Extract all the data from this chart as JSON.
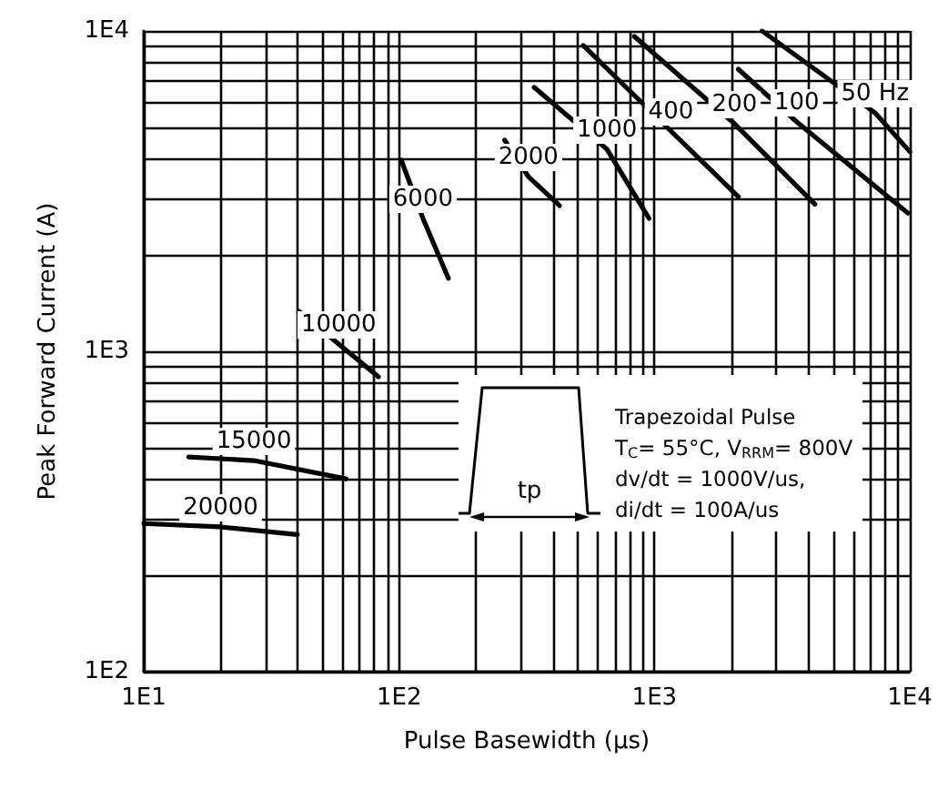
{
  "chart_data": {
    "type": "line",
    "xlabel": "Pulse Basewidth (µs)",
    "ylabel": "Peak Forward Current (A)",
    "log": "xy",
    "grid": true,
    "xlim": [
      10,
      10000
    ],
    "xticks": [
      {
        "value": 10,
        "label": "1E1"
      },
      {
        "value": 100,
        "label": "1E2"
      },
      {
        "value": 1000,
        "label": "1E3"
      },
      {
        "value": 10000,
        "label": "1E4"
      }
    ],
    "ylim": [
      100,
      10000
    ],
    "yticks": [
      {
        "value": 100,
        "label": "1E2"
      },
      {
        "value": 1000,
        "label": "1E3"
      },
      {
        "value": 10000,
        "label": "1E4"
      }
    ],
    "series": [
      {
        "name": "20000",
        "color": "#000000",
        "x": [
          10,
          20,
          40
        ],
        "values": [
          290,
          283,
          268
        ]
      },
      {
        "name": "15000",
        "color": "#000000",
        "x": [
          15,
          27,
          62
        ],
        "values": [
          468,
          456,
          400
        ]
      },
      {
        "name": "10000",
        "color": "#000000",
        "x": [
          40.5,
          58,
          83
        ],
        "values": [
          1333,
          1053,
          832
        ]
      },
      {
        "name": "6000",
        "color": "#000000",
        "x": [
          102,
          124,
          156
        ],
        "values": [
          3950,
          2600,
          1690
        ]
      },
      {
        "name": "2000",
        "color": "#000000",
        "x": [
          259,
          321,
          425
        ],
        "values": [
          4560,
          3510,
          2850
        ]
      },
      {
        "name": "1000",
        "color": "#000000",
        "x": [
          338,
          652,
          952
        ],
        "values": [
          6670,
          4270,
          2600
        ]
      },
      {
        "name": "400",
        "color": "#000000",
        "x": [
          526,
          1160,
          2130
        ],
        "values": [
          9010,
          4870,
          3040
        ]
      },
      {
        "name": "200",
        "color": "#000000",
        "x": [
          834,
          2060,
          4250
        ],
        "values": [
          9610,
          5130,
          2880
        ]
      },
      {
        "name": "100",
        "color": "#000000",
        "x": [
          2130,
          3610,
          9840
        ],
        "values": [
          7600,
          5200,
          2700
        ]
      },
      {
        "name": "50 Hz",
        "color": "#000000",
        "x": [
          2640,
          7310,
          10000
        ],
        "values": [
          10000,
          5550,
          4200
        ]
      }
    ],
    "annotations": [
      "tp",
      "Trapezoidal Pulse",
      "T$_{C}$= 55°C, V$_{RRM}$= 800V",
      "dv/dt = 1000V/us,",
      "di/dt = 100A/us"
    ]
  }
}
